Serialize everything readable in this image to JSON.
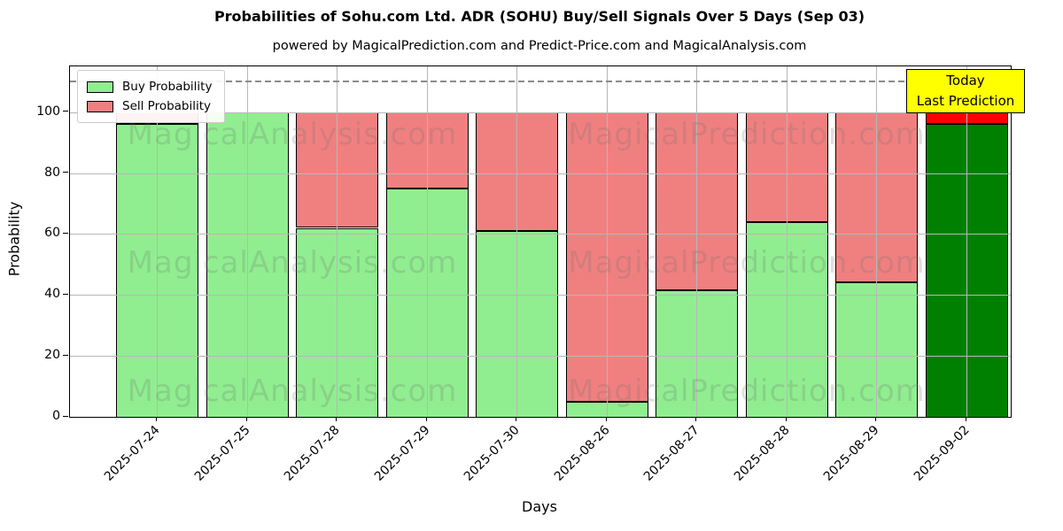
{
  "figure": {
    "title": "Probabilities of Sohu.com Ltd. ADR (SOHU) Buy/Sell Signals Over 5 Days (Sep 03)",
    "subtitle": "powered by MagicalPrediction.com and Predict-Price.com and MagicalAnalysis.com"
  },
  "chart_data": {
    "type": "bar",
    "stacked": true,
    "title": "Probabilities of Sohu.com Ltd. ADR (SOHU) Buy/Sell Signals Over 5 Days (Sep 03)",
    "xlabel": "Days",
    "ylabel": "Probability",
    "categories": [
      "2025-07-24",
      "2025-07-25",
      "2025-07-28",
      "2025-07-29",
      "2025-07-30",
      "2025-08-26",
      "2025-08-27",
      "2025-08-28",
      "2025-08-29",
      "2025-09-02"
    ],
    "series": [
      {
        "name": "Buy Probability",
        "color": "#90EE90",
        "today_color": "#008000",
        "values": [
          96,
          100,
          62,
          75,
          61,
          5,
          41.5,
          64,
          44,
          96
        ]
      },
      {
        "name": "Sell Probability",
        "color": "#F08080",
        "today_color": "#FF0000",
        "values": [
          4,
          0,
          38,
          25,
          39,
          95,
          58.5,
          36,
          56,
          4
        ]
      }
    ],
    "today_index": 9,
    "ylim": [
      0,
      115
    ],
    "yticks": [
      0,
      20,
      40,
      60,
      80,
      100
    ],
    "dashed_line_y": 110,
    "grid": true,
    "legend_position": "top-left"
  },
  "legend": {
    "buy_label": "Buy Probability",
    "sell_label": "Sell Probability"
  },
  "annotation": {
    "line1": "Today",
    "line2": "Last Prediction",
    "bg_color": "#FFFF00"
  },
  "watermarks": {
    "left_text": "MagicalAnalysis.com",
    "right_text": "MagicalPrediction.com",
    "color": "#6E6E6E"
  }
}
